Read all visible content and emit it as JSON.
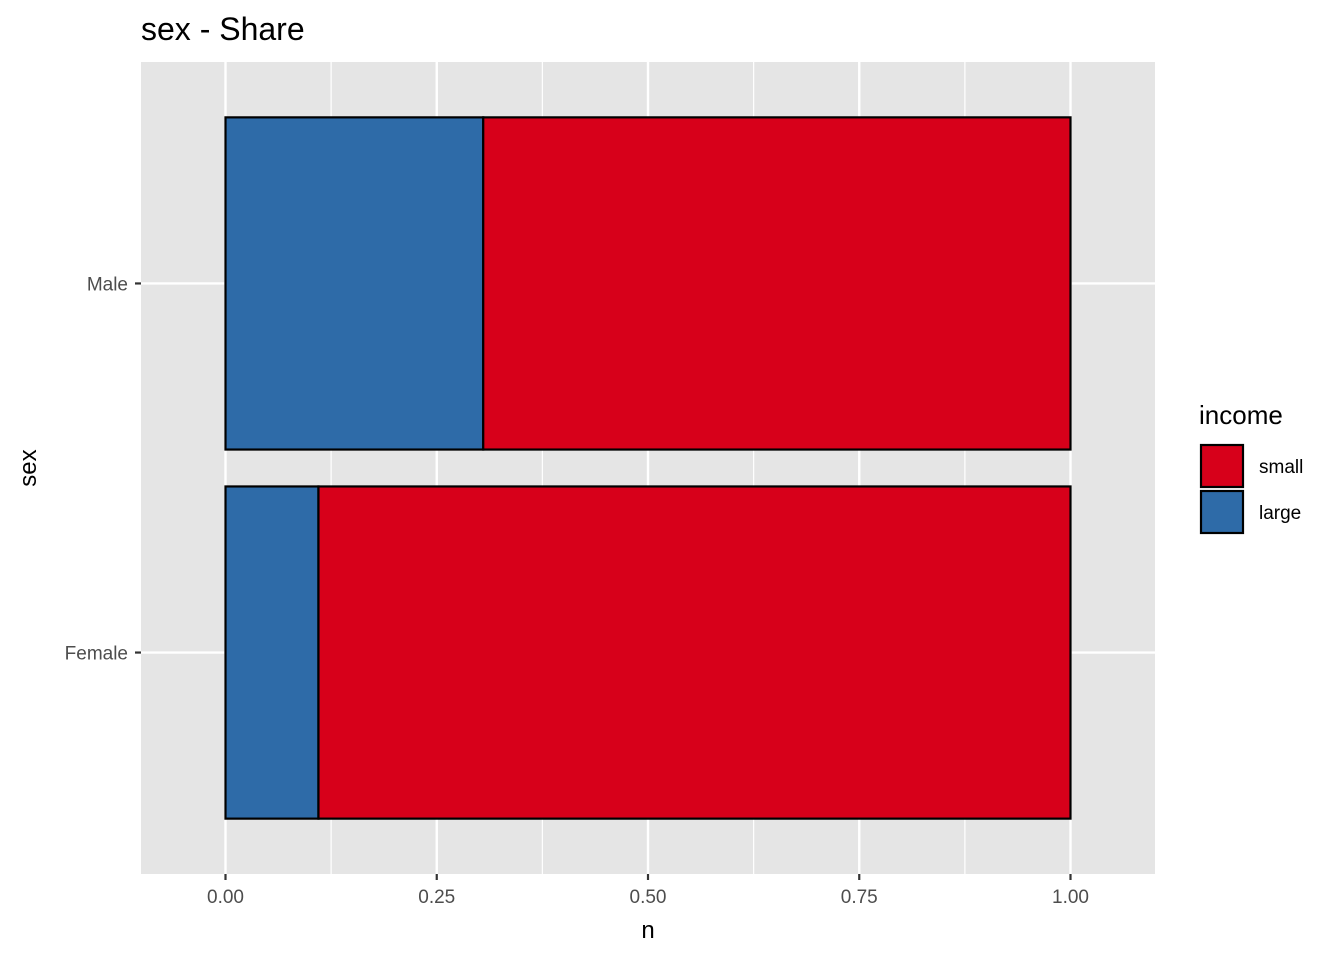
{
  "chart_data": {
    "type": "bar",
    "orientation": "horizontal",
    "stacked": true,
    "title": "sex - Share",
    "xlabel": "n",
    "ylabel": "sex",
    "categories": [
      "Female",
      "Male"
    ],
    "series": [
      {
        "name": "small",
        "color": "#d7001a",
        "values": [
          0.89,
          0.695
        ]
      },
      {
        "name": "large",
        "color": "#2e6ba8",
        "values": [
          0.11,
          0.305
        ]
      }
    ],
    "stack_order": [
      "large",
      "small"
    ],
    "xlim": [
      -0.1,
      1.1
    ],
    "xticks": [
      0.0,
      0.25,
      0.5,
      0.75,
      1.0
    ],
    "xtick_labels": [
      "0.00",
      "0.25",
      "0.50",
      "0.75",
      "1.00"
    ],
    "grid": true,
    "panel_background": "#e5e5e5",
    "grid_color": "#ffffff",
    "legend": {
      "title": "income",
      "position": "right",
      "entries": [
        "small",
        "large"
      ]
    }
  }
}
